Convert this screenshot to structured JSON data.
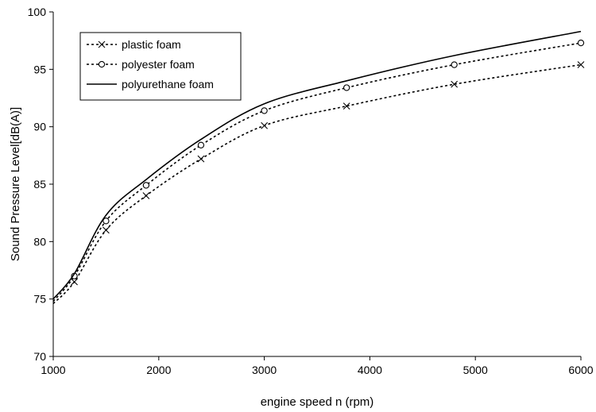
{
  "chart_data": {
    "type": "line",
    "title": "",
    "xlabel": "engine speed n (rpm)",
    "ylabel": "Sound Pressure Level[dB(A)]",
    "xlim": [
      1000,
      6000
    ],
    "ylim": [
      70,
      100
    ],
    "xticks": [
      1000,
      2000,
      3000,
      4000,
      5000,
      6000
    ],
    "yticks": [
      70,
      75,
      80,
      85,
      90,
      95,
      100
    ],
    "grid": false,
    "legend_position": "top-left",
    "series": [
      {
        "name": "plastic foam",
        "line_style": "dotted",
        "marker": "x",
        "color": "#000000",
        "x": [
          1000,
          1200,
          1500,
          1880,
          2400,
          3000,
          3780,
          4800,
          6000
        ],
        "y": [
          74.6,
          76.5,
          81.0,
          84.0,
          87.2,
          90.1,
          91.8,
          93.7,
          95.4
        ]
      },
      {
        "name": "polyester foam",
        "line_style": "dotted",
        "marker": "o",
        "color": "#000000",
        "x": [
          1000,
          1200,
          1500,
          1880,
          2400,
          3000,
          3780,
          4800,
          6000
        ],
        "y": [
          74.8,
          77.0,
          81.8,
          84.9,
          88.4,
          91.4,
          93.4,
          95.4,
          97.3
        ]
      },
      {
        "name": "polyurethane foam",
        "line_style": "solid",
        "marker": "none",
        "color": "#000000",
        "x": [
          1000,
          1200,
          1500,
          1880,
          2400,
          3000,
          3780,
          4800,
          6000
        ],
        "y": [
          75.0,
          77.2,
          82.3,
          85.4,
          88.9,
          92.0,
          94.0,
          96.2,
          98.3
        ]
      }
    ]
  }
}
